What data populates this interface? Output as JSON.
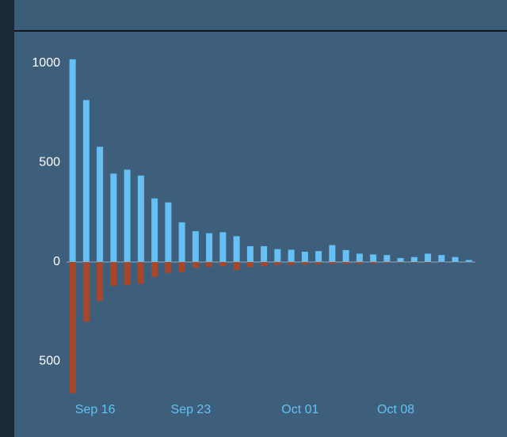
{
  "chart_data": {
    "type": "bar",
    "categories": [
      null,
      null,
      "Sep 16",
      null,
      null,
      null,
      null,
      null,
      null,
      "Sep 23",
      null,
      null,
      null,
      null,
      null,
      null,
      null,
      "Oct 01",
      null,
      null,
      null,
      null,
      null,
      null,
      "Oct 08",
      null,
      null,
      null,
      null,
      null
    ],
    "series": [
      {
        "color": "#66c0f4",
        "values": [
          1020,
          815,
          580,
          445,
          465,
          435,
          320,
          300,
          200,
          155,
          145,
          150,
          130,
          80,
          80,
          65,
          62,
          52,
          55,
          85,
          60,
          42,
          38,
          35,
          20,
          25,
          42,
          35,
          25,
          10
        ]
      },
      {
        "color": "#a8462a",
        "values": [
          -660,
          -300,
          -195,
          -120,
          -115,
          -110,
          -75,
          -55,
          -50,
          -30,
          -25,
          -20,
          -40,
          -25,
          -20,
          -15,
          -15,
          -12,
          -12,
          -10,
          -10,
          -10,
          -8,
          -5,
          -3,
          -3,
          -3,
          -2,
          -2,
          -1
        ]
      }
    ],
    "ylim": [
      -700,
      1050
    ],
    "yticks": [
      {
        "value": -500,
        "label": "500"
      },
      0,
      500,
      1000
    ],
    "grid": false
  }
}
